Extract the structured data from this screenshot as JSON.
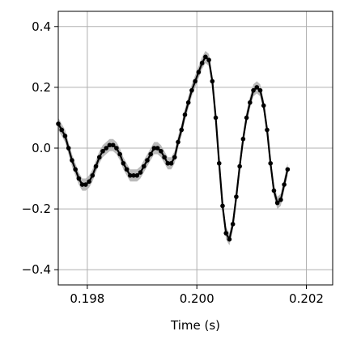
{
  "chart_data": {
    "type": "line",
    "title": "",
    "xlabel": "Time (s)",
    "ylabel": "",
    "xlim": [
      0.19747,
      0.20248
    ],
    "ylim": [
      -0.45,
      0.45
    ],
    "grid": true,
    "x_ticks": [
      0.198,
      0.2,
      0.202
    ],
    "x_tick_labels": [
      "0.198",
      "0.200",
      "0.202"
    ],
    "y_ticks": [
      0.4,
      0.2,
      0.0,
      -0.2,
      -0.4
    ],
    "y_tick_labels": [
      "0.4",
      "0.2",
      "0.0",
      "−0.2",
      "−0.4"
    ],
    "colors": {
      "line": "#000000",
      "band": "#b3b3b3",
      "grid": "#b0b0b0"
    },
    "series": [
      {
        "x_start": 0.19747,
        "x_step": 6.25e-05,
        "values": [
          0.08,
          0.06,
          0.04,
          0.0,
          -0.04,
          -0.07,
          -0.1,
          -0.12,
          -0.12,
          -0.11,
          -0.09,
          -0.06,
          -0.03,
          -0.01,
          0.0,
          0.01,
          0.01,
          0.0,
          -0.02,
          -0.05,
          -0.07,
          -0.09,
          -0.09,
          -0.09,
          -0.08,
          -0.06,
          -0.04,
          -0.02,
          0.0,
          0.0,
          -0.01,
          -0.03,
          -0.05,
          -0.05,
          -0.03,
          0.02,
          0.06,
          0.11,
          0.15,
          0.19,
          0.22,
          0.25,
          0.28,
          0.3,
          0.29,
          0.22,
          0.1,
          -0.05,
          -0.19,
          -0.28,
          -0.3,
          -0.25,
          -0.16,
          -0.06,
          0.03,
          0.1,
          0.15,
          0.19,
          0.2,
          0.19,
          0.14,
          0.06,
          -0.05,
          -0.14,
          -0.18,
          -0.17,
          -0.12,
          -0.07
        ],
        "band": 0.02
      }
    ]
  }
}
